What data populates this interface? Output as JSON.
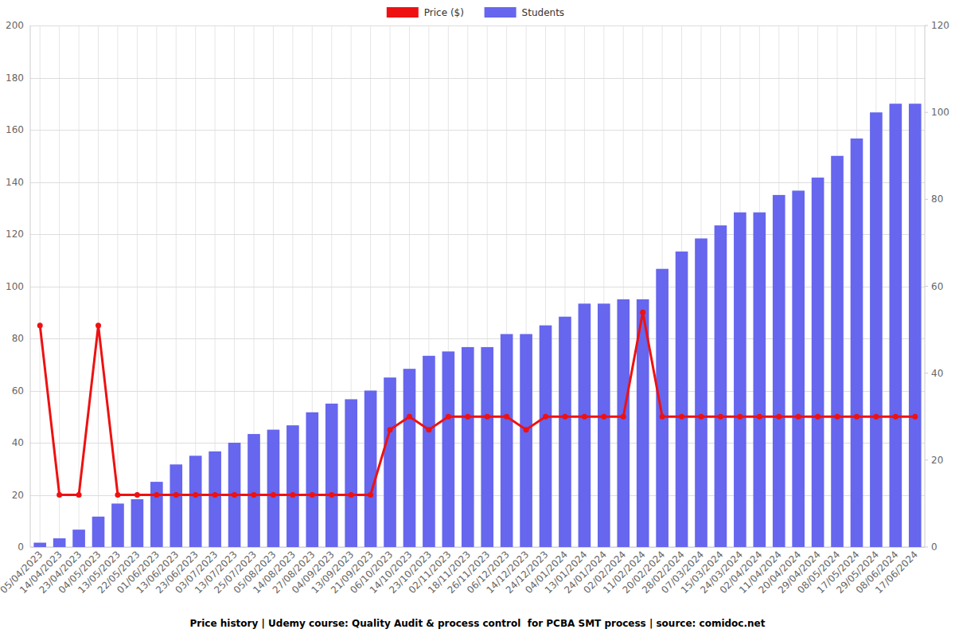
{
  "chart_data": {
    "type": "bar",
    "title": "Price history | Udemy course: Quality Audit & process control  for PCBA SMT process | source: comidoc.net",
    "categories": [
      "05/04/2023",
      "14/04/2023",
      "23/04/2023",
      "04/05/2023",
      "13/05/2023",
      "22/05/2023",
      "01/06/2023",
      "13/06/2023",
      "23/06/2023",
      "03/07/2023",
      "13/07/2023",
      "25/07/2023",
      "05/08/2023",
      "14/08/2023",
      "27/08/2023",
      "04/09/2023",
      "13/09/2023",
      "21/09/2023",
      "06/10/2023",
      "14/10/2023",
      "23/10/2023",
      "02/11/2023",
      "18/11/2023",
      "26/11/2023",
      "06/12/2023",
      "14/12/2023",
      "24/12/2023",
      "04/01/2024",
      "13/01/2024",
      "24/01/2024",
      "02/02/2024",
      "11/02/2024",
      "20/02/2024",
      "28/02/2024",
      "07/03/2024",
      "15/03/2024",
      "24/03/2024",
      "02/04/2024",
      "11/04/2024",
      "20/04/2024",
      "29/04/2024",
      "08/05/2024",
      "17/05/2024",
      "29/05/2024",
      "08/06/2024",
      "17/06/2024"
    ],
    "series": [
      {
        "name": "Price ($)",
        "type": "line",
        "axis": "y",
        "color": "#ee1111",
        "marker": "circle",
        "values": [
          85,
          20,
          20,
          85,
          20,
          20,
          20,
          20,
          20,
          20,
          20,
          20,
          20,
          20,
          20,
          20,
          20,
          20,
          45,
          50,
          45,
          50,
          50,
          50,
          50,
          45,
          50,
          50,
          50,
          50,
          50,
          90,
          50,
          50,
          50,
          50,
          50,
          50,
          50,
          50,
          50,
          50,
          50,
          50,
          50,
          50
        ]
      },
      {
        "name": "Students",
        "type": "bar",
        "axis": "y2",
        "color": "#6666ee",
        "values": [
          1,
          2,
          4,
          7,
          10,
          11,
          15,
          19,
          21,
          22,
          24,
          26,
          27,
          28,
          31,
          33,
          34,
          36,
          39,
          41,
          44,
          45,
          46,
          46,
          49,
          49,
          51,
          53,
          56,
          56,
          57,
          57,
          64,
          68,
          71,
          74,
          77,
          77,
          81,
          82,
          85,
          90,
          94,
          100,
          102,
          102
        ]
      }
    ],
    "ylim": [
      0,
      200
    ],
    "yticks": [
      0,
      20,
      40,
      60,
      80,
      100,
      120,
      140,
      160,
      180,
      200
    ],
    "y2lim": [
      0,
      120
    ],
    "y2ticks": [
      0,
      20,
      40,
      60,
      80,
      100,
      120
    ],
    "grid": true,
    "legend": "top"
  }
}
